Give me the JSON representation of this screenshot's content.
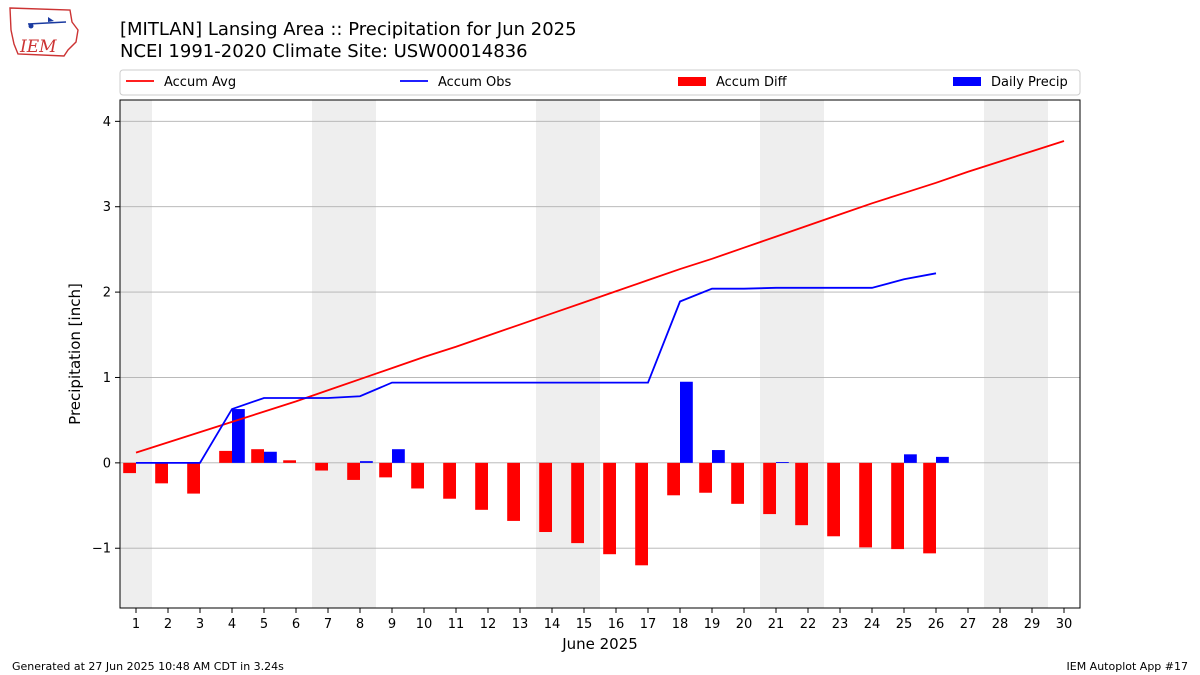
{
  "header": {
    "logo_text": "IEM",
    "title_line1": "[MITLAN] Lansing Area :: Precipitation for Jun 2025",
    "title_line2": "NCEI 1991-2020 Climate Site: USW00014836"
  },
  "footer": {
    "left": "Generated at 27 Jun 2025 10:48 AM CDT in 3.24s",
    "right": "IEM Autoplot App #17"
  },
  "colors": {
    "avg": "#ff0000",
    "obs": "#0000ff",
    "diff": "#ff0000",
    "daily": "#0000ff",
    "weekend": "#eeeeee",
    "grid": "#b0b0b0"
  },
  "chart_data": {
    "type": "bar",
    "xlabel": "June 2025",
    "ylabel": "Precipitation [inch]",
    "xlim": [
      0.5,
      30.5
    ],
    "ylim": [
      -1.7,
      4.25
    ],
    "yticks": [
      -1,
      0,
      1,
      2,
      3,
      4
    ],
    "ytick_labels": [
      "−1",
      "0",
      "1",
      "2",
      "3",
      "4"
    ],
    "days": [
      1,
      2,
      3,
      4,
      5,
      6,
      7,
      8,
      9,
      10,
      11,
      12,
      13,
      14,
      15,
      16,
      17,
      18,
      19,
      20,
      21,
      22,
      23,
      24,
      25,
      26,
      27,
      28,
      29,
      30
    ],
    "weekend_bands": [
      [
        0.5,
        1.5
      ],
      [
        6.5,
        8.5
      ],
      [
        13.5,
        15.5
      ],
      [
        20.5,
        22.5
      ],
      [
        27.5,
        29.5
      ]
    ],
    "legend": {
      "placement": "top",
      "entries": [
        {
          "label": "Accum Avg",
          "kind": "line",
          "color": "#ff0000"
        },
        {
          "label": "Accum Obs",
          "kind": "line",
          "color": "#0000ff"
        },
        {
          "label": "Accum Diff",
          "kind": "bar",
          "color": "#ff0000"
        },
        {
          "label": "Daily Precip",
          "kind": "bar",
          "color": "#0000ff"
        }
      ]
    },
    "series": [
      {
        "name": "Accum Avg",
        "type": "line",
        "x": [
          1,
          2,
          3,
          4,
          5,
          6,
          7,
          8,
          9,
          10,
          11,
          12,
          13,
          14,
          15,
          16,
          17,
          18,
          19,
          20,
          21,
          22,
          23,
          24,
          25,
          26,
          27,
          28,
          29,
          30
        ],
        "values": [
          0.12,
          0.24,
          0.36,
          0.48,
          0.6,
          0.72,
          0.85,
          0.98,
          1.11,
          1.24,
          1.36,
          1.49,
          1.62,
          1.75,
          1.88,
          2.01,
          2.14,
          2.27,
          2.39,
          2.52,
          2.65,
          2.78,
          2.91,
          3.04,
          3.16,
          3.28,
          3.41,
          3.53,
          3.65,
          3.77
        ]
      },
      {
        "name": "Accum Obs",
        "type": "line",
        "x": [
          1,
          2,
          3,
          4,
          5,
          6,
          7,
          8,
          9,
          10,
          11,
          12,
          13,
          14,
          15,
          16,
          17,
          18,
          19,
          20,
          21,
          22,
          23,
          24,
          25,
          26
        ],
        "values": [
          0.0,
          0.0,
          0.0,
          0.63,
          0.76,
          0.76,
          0.76,
          0.78,
          0.94,
          0.94,
          0.94,
          0.94,
          0.94,
          0.94,
          0.94,
          0.94,
          0.94,
          1.89,
          2.04,
          2.04,
          2.05,
          2.05,
          2.05,
          2.05,
          2.15,
          2.22
        ]
      },
      {
        "name": "Accum Diff",
        "type": "bar",
        "x": [
          1,
          2,
          3,
          4,
          5,
          6,
          7,
          8,
          9,
          10,
          11,
          12,
          13,
          14,
          15,
          16,
          17,
          18,
          19,
          20,
          21,
          22,
          23,
          24,
          25,
          26
        ],
        "values": [
          -0.12,
          -0.24,
          -0.36,
          0.14,
          0.16,
          0.03,
          -0.09,
          -0.2,
          -0.17,
          -0.3,
          -0.42,
          -0.55,
          -0.68,
          -0.81,
          -0.94,
          -1.07,
          -1.2,
          -0.38,
          -0.35,
          -0.48,
          -0.6,
          -0.73,
          -0.86,
          -0.99,
          -1.01,
          -1.06
        ]
      },
      {
        "name": "Daily Precip",
        "type": "bar",
        "x": [
          4,
          5,
          8,
          9,
          18,
          19,
          21,
          25,
          26
        ],
        "values": [
          0.63,
          0.13,
          0.02,
          0.16,
          0.95,
          0.15,
          0.01,
          0.1,
          0.07
        ]
      }
    ]
  }
}
